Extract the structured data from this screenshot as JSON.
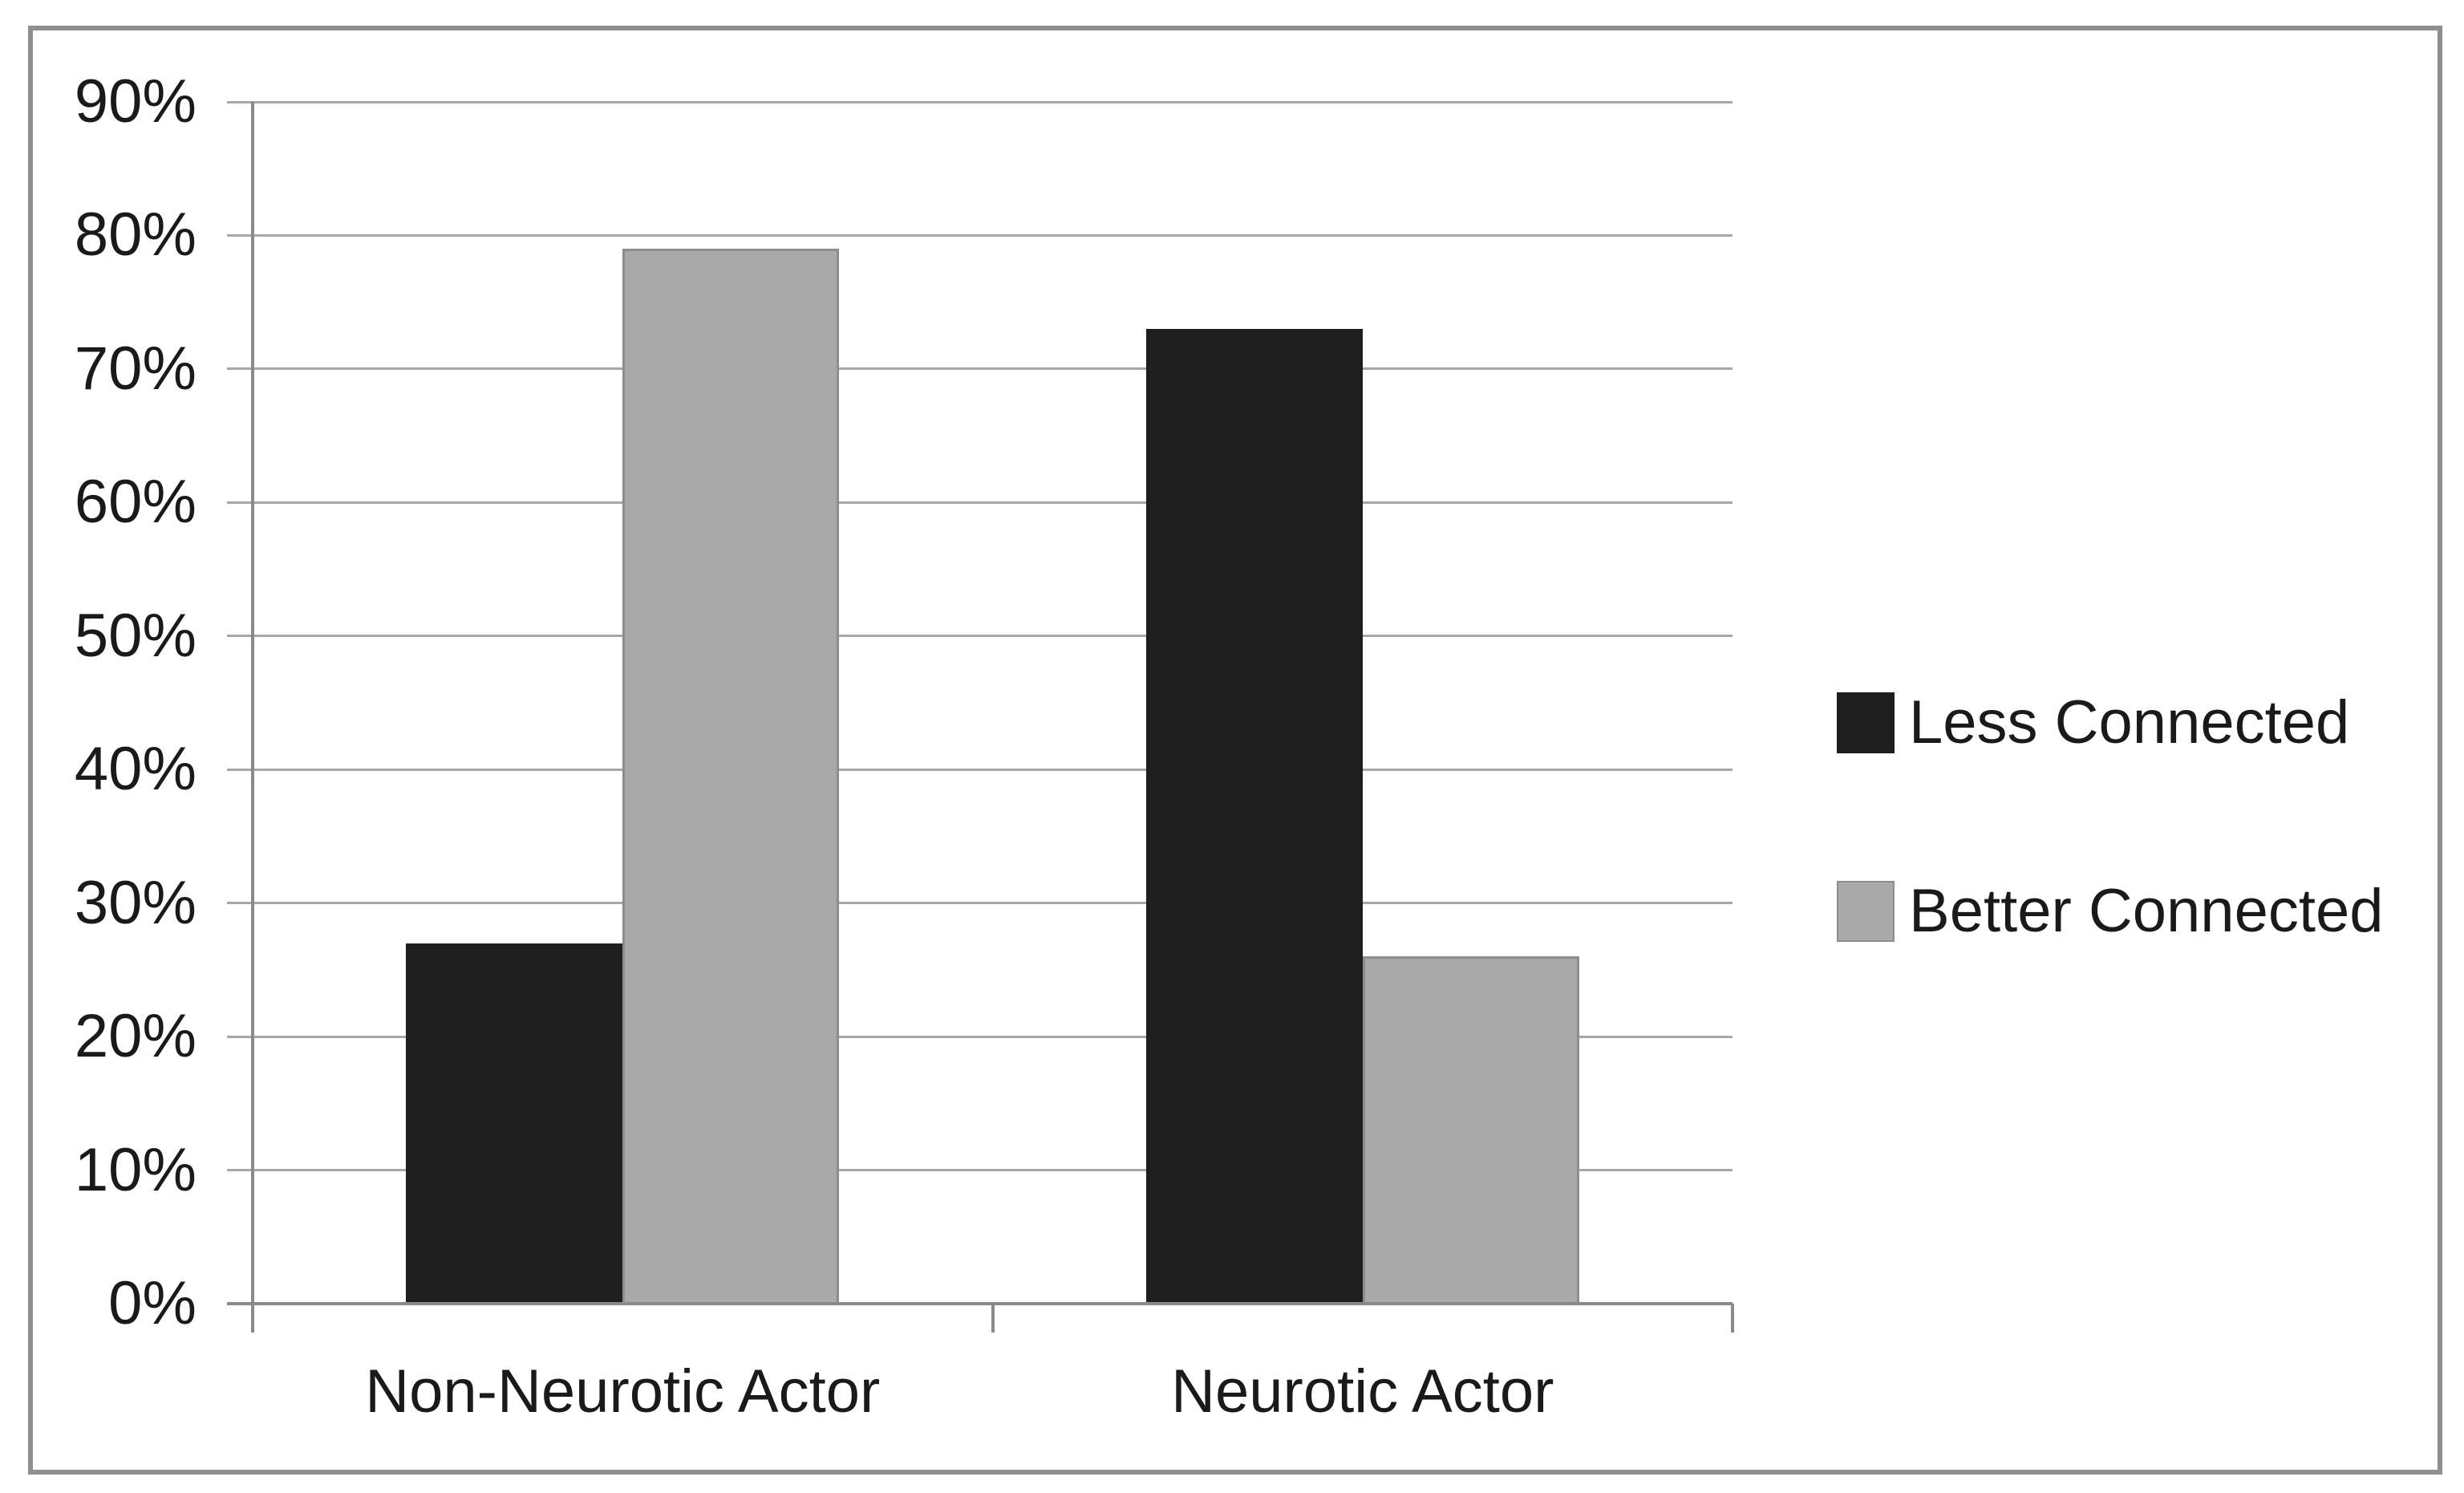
{
  "figure": {
    "background_color": "#ffffff",
    "border_color": "#8f8f8f"
  },
  "chart_data": {
    "type": "bar",
    "title": "",
    "categories": [
      "Non-Neurotic Actor",
      "Neurotic Actor"
    ],
    "series": [
      {
        "name": "Less Connected",
        "color": "#1e1e1e",
        "values": [
          27,
          73
        ]
      },
      {
        "name": "Better Connected",
        "color": "#a9a9a9",
        "border_color": "#8d8d8d",
        "values": [
          79,
          26
        ]
      }
    ],
    "y_axis": {
      "min": 0,
      "max": 90,
      "step": 10,
      "unit": "%",
      "tick_labels": [
        "0%",
        "10%",
        "20%",
        "30%",
        "40%",
        "50%",
        "60%",
        "70%",
        "80%",
        "90%"
      ]
    },
    "x_axis": {
      "label": ""
    },
    "legend": {
      "position": "right"
    },
    "grid": true,
    "gridline_color": "#a7a7a7",
    "axis_color": "#8a8a8a",
    "text_color": "#1a1a1a"
  }
}
